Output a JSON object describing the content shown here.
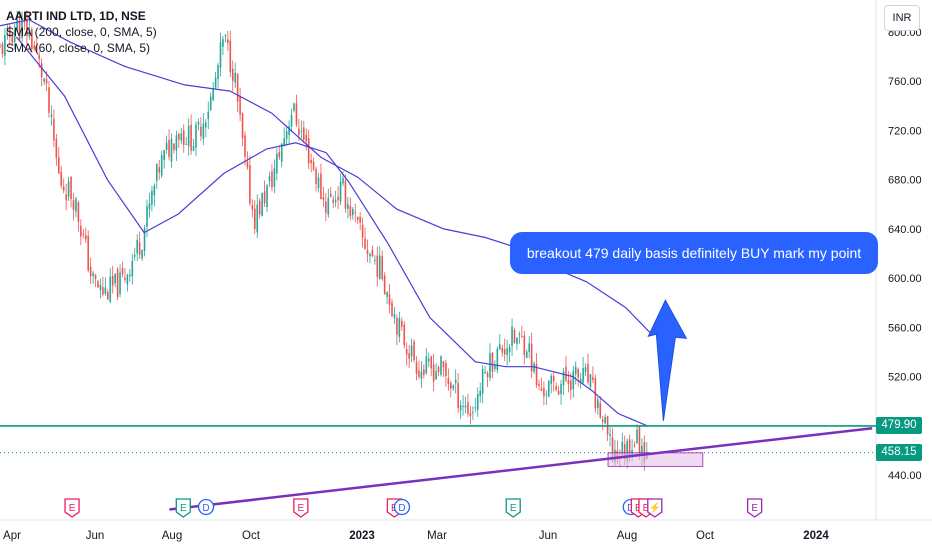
{
  "header": {
    "symbol": "AARTI IND LTD, 1D, NSE",
    "indicators": [
      "SMA (200, close, 0, SMA, 5)",
      "SMA (60, close, 0, SMA, 5)"
    ],
    "currency_button": "INR"
  },
  "annotation": {
    "text": "breakout 479 daily basis definitely BUY mark my point",
    "color": "#2962ff"
  },
  "price_labels": [
    {
      "value": "479.90",
      "color": "#089981"
    },
    {
      "value": "458.15",
      "color": "#089981"
    }
  ],
  "colors": {
    "up": "#26a69a",
    "down": "#ef5350",
    "sma": "#4a3cd6",
    "trendline": "#7b2fbe",
    "hline": "#089981",
    "zone": "#e1bee7"
  },
  "chart_data": {
    "type": "candlestick",
    "y_ticks": [
      "440.00",
      "480.00",
      "520.00",
      "560.00",
      "600.00",
      "640.00",
      "680.00",
      "720.00",
      "760.00",
      "800.00"
    ],
    "x_ticks": [
      "Apr",
      "Jun",
      "Aug",
      "Oct",
      "2023",
      "Mar",
      "Jun",
      "Aug",
      "Oct",
      "2024"
    ],
    "ylim": [
      412,
      822
    ],
    "xlim": [
      "2022-03-24",
      "2024-02-15"
    ],
    "price": [
      {
        "x": "2022-03-24",
        "y": 785
      },
      {
        "x": "2022-04-06",
        "y": 805
      },
      {
        "x": "2022-04-16",
        "y": 800
      },
      {
        "x": "2022-04-28",
        "y": 760
      },
      {
        "x": "2022-05-10",
        "y": 680
      },
      {
        "x": "2022-05-22",
        "y": 665
      },
      {
        "x": "2022-06-05",
        "y": 598
      },
      {
        "x": "2022-06-14",
        "y": 588
      },
      {
        "x": "2022-06-28",
        "y": 596
      },
      {
        "x": "2022-07-14",
        "y": 632
      },
      {
        "x": "2022-07-28",
        "y": 690
      },
      {
        "x": "2022-08-11",
        "y": 720
      },
      {
        "x": "2022-08-25",
        "y": 712
      },
      {
        "x": "2022-09-08",
        "y": 748
      },
      {
        "x": "2022-09-17",
        "y": 795
      },
      {
        "x": "2022-09-25",
        "y": 768
      },
      {
        "x": "2022-10-04",
        "y": 690
      },
      {
        "x": "2022-10-11",
        "y": 648
      },
      {
        "x": "2022-10-25",
        "y": 680
      },
      {
        "x": "2022-11-10",
        "y": 738
      },
      {
        "x": "2022-11-22",
        "y": 705
      },
      {
        "x": "2022-12-06",
        "y": 660
      },
      {
        "x": "2022-12-20",
        "y": 672
      },
      {
        "x": "2023-01-05",
        "y": 630
      },
      {
        "x": "2023-01-20",
        "y": 605
      },
      {
        "x": "2023-02-04",
        "y": 555
      },
      {
        "x": "2023-02-20",
        "y": 525
      },
      {
        "x": "2023-03-08",
        "y": 527
      },
      {
        "x": "2023-03-24",
        "y": 500
      },
      {
        "x": "2023-04-01",
        "y": 490
      },
      {
        "x": "2023-04-14",
        "y": 530
      },
      {
        "x": "2023-05-02",
        "y": 550
      },
      {
        "x": "2023-05-15",
        "y": 548
      },
      {
        "x": "2023-05-24",
        "y": 508
      },
      {
        "x": "2023-06-05",
        "y": 512
      },
      {
        "x": "2023-06-20",
        "y": 520
      },
      {
        "x": "2023-07-02",
        "y": 518
      },
      {
        "x": "2023-07-12",
        "y": 490
      },
      {
        "x": "2023-07-21",
        "y": 458
      },
      {
        "x": "2023-07-31",
        "y": 460
      },
      {
        "x": "2023-08-09",
        "y": 470
      },
      {
        "x": "2023-08-18",
        "y": 458
      }
    ],
    "sma_200": [
      {
        "x": "2022-03-24",
        "y": 805
      },
      {
        "x": "2022-04-16",
        "y": 810
      },
      {
        "x": "2022-05-18",
        "y": 792
      },
      {
        "x": "2022-07-01",
        "y": 772
      },
      {
        "x": "2022-08-17",
        "y": 757
      },
      {
        "x": "2022-09-22",
        "y": 752
      },
      {
        "x": "2022-10-25",
        "y": 734
      },
      {
        "x": "2022-12-03",
        "y": 698
      },
      {
        "x": "2023-01-01",
        "y": 682
      },
      {
        "x": "2023-02-01",
        "y": 656
      },
      {
        "x": "2023-03-10",
        "y": 640
      },
      {
        "x": "2023-04-12",
        "y": 633
      },
      {
        "x": "2023-05-03",
        "y": 626
      },
      {
        "x": "2023-06-01",
        "y": 610
      },
      {
        "x": "2023-07-01",
        "y": 597
      },
      {
        "x": "2023-08-01",
        "y": 576
      },
      {
        "x": "2023-08-20",
        "y": 556
      }
    ],
    "sma_60": [
      {
        "x": "2022-04-06",
        "y": 796
      },
      {
        "x": "2022-05-14",
        "y": 748
      },
      {
        "x": "2022-06-17",
        "y": 680
      },
      {
        "x": "2022-07-16",
        "y": 637
      },
      {
        "x": "2022-08-12",
        "y": 652
      },
      {
        "x": "2022-09-17",
        "y": 685
      },
      {
        "x": "2022-10-21",
        "y": 705
      },
      {
        "x": "2022-11-13",
        "y": 710
      },
      {
        "x": "2022-12-07",
        "y": 702
      },
      {
        "x": "2022-12-25",
        "y": 678
      },
      {
        "x": "2023-01-25",
        "y": 628
      },
      {
        "x": "2023-02-27",
        "y": 568
      },
      {
        "x": "2023-04-04",
        "y": 532
      },
      {
        "x": "2023-04-28",
        "y": 528
      },
      {
        "x": "2023-05-20",
        "y": 528
      },
      {
        "x": "2023-06-20",
        "y": 520
      },
      {
        "x": "2023-07-06",
        "y": 508
      },
      {
        "x": "2023-07-26",
        "y": 490
      },
      {
        "x": "2023-08-18",
        "y": 480
      }
    ],
    "horizontal_line": 479.9,
    "last_price": 458.15,
    "trendline": [
      {
        "x": "2022-08-05",
        "y": 412
      },
      {
        "x": "2024-02-12",
        "y": 478
      }
    ],
    "zone": {
      "x0": "2023-07-18",
      "x1": "2023-10-01",
      "y0": 447,
      "y1": 458
    },
    "arrow": {
      "x": "2023-08-30",
      "y_from": 484,
      "y_to": 582
    },
    "events": [
      {
        "label": "E",
        "x": "2022-05-20",
        "color": "#e91e63"
      },
      {
        "label": "E",
        "x": "2022-08-16",
        "color": "#089981"
      },
      {
        "label": "D",
        "x": "2022-09-03",
        "color": "#2962ff"
      },
      {
        "label": "E",
        "x": "2022-11-17",
        "color": "#e91e63"
      },
      {
        "label": "E",
        "x": "2023-01-30",
        "color": "#e91e63"
      },
      {
        "label": "D",
        "x": "2023-02-05",
        "color": "#2962ff"
      },
      {
        "label": "E",
        "x": "2023-05-04",
        "color": "#089981"
      },
      {
        "label": "D",
        "x": "2023-08-05",
        "color": "#2962ff"
      },
      {
        "label": "E",
        "x": "2023-08-11",
        "color": "#e91e63"
      },
      {
        "label": "E",
        "x": "2023-08-17",
        "color": "#e91e63"
      },
      {
        "label": "⚡",
        "x": "2023-08-24",
        "color": "#9c27b0"
      },
      {
        "label": "E",
        "x": "2023-11-11",
        "color": "#9c27b0"
      }
    ]
  }
}
